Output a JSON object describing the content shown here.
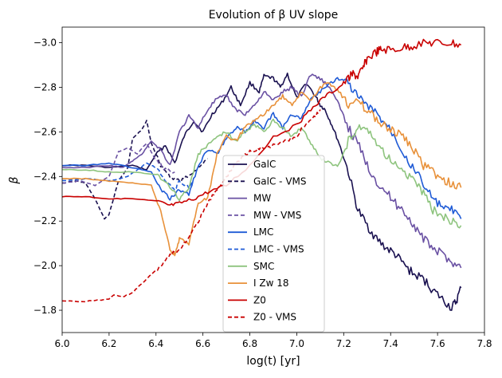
{
  "chart_data": {
    "type": "line",
    "title": "Evolution of β UV slope",
    "xlabel": "log(t) [yr]",
    "ylabel": "β",
    "xlim": [
      6.0,
      7.8
    ],
    "ylim": [
      -1.7,
      -3.07
    ],
    "y_inverted": true,
    "x_ticks": [
      "6.0",
      "6.2",
      "6.4",
      "6.6",
      "6.8",
      "7.0",
      "7.2",
      "7.4",
      "7.6",
      "7.8"
    ],
    "x_tick_values": [
      6.0,
      6.2,
      6.4,
      6.6,
      6.8,
      7.0,
      7.2,
      7.4,
      7.6,
      7.8
    ],
    "y_ticks": [
      "−3.0",
      "−2.8",
      "−2.6",
      "−2.4",
      "−2.2",
      "−2.0",
      "−1.8"
    ],
    "y_tick_values": [
      -3.0,
      -2.8,
      -2.6,
      -2.4,
      -2.2,
      -2.0,
      -1.8
    ],
    "legend_position": "lower-center",
    "series": [
      {
        "name": "GalC",
        "color": "#1a1150",
        "dash": "solid",
        "points": [
          [
            6.0,
            -2.45
          ],
          [
            6.1,
            -2.45
          ],
          [
            6.2,
            -2.44
          ],
          [
            6.3,
            -2.45
          ],
          [
            6.36,
            -2.43
          ],
          [
            6.4,
            -2.5
          ],
          [
            6.44,
            -2.54
          ],
          [
            6.48,
            -2.46
          ],
          [
            6.52,
            -2.58
          ],
          [
            6.56,
            -2.65
          ],
          [
            6.6,
            -2.6
          ],
          [
            6.64,
            -2.68
          ],
          [
            6.68,
            -2.73
          ],
          [
            6.72,
            -2.8
          ],
          [
            6.76,
            -2.72
          ],
          [
            6.8,
            -2.82
          ],
          [
            6.84,
            -2.78
          ],
          [
            6.86,
            -2.85
          ],
          [
            6.9,
            -2.84
          ],
          [
            6.93,
            -2.8
          ],
          [
            6.96,
            -2.86
          ],
          [
            7.0,
            -2.75
          ],
          [
            7.04,
            -2.82
          ],
          [
            7.08,
            -2.76
          ],
          [
            7.1,
            -2.72
          ],
          [
            7.12,
            -2.7
          ],
          [
            7.15,
            -2.63
          ],
          [
            7.18,
            -2.55
          ],
          [
            7.22,
            -2.42
          ],
          [
            7.26,
            -2.25
          ],
          [
            7.3,
            -2.18
          ],
          [
            7.34,
            -2.12
          ],
          [
            7.38,
            -2.08
          ],
          [
            7.42,
            -2.05
          ],
          [
            7.46,
            -2.0
          ],
          [
            7.5,
            -1.96
          ],
          [
            7.54,
            -1.94
          ],
          [
            7.58,
            -1.89
          ],
          [
            7.62,
            -1.85
          ],
          [
            7.66,
            -1.81
          ],
          [
            7.68,
            -1.84
          ],
          [
            7.7,
            -1.9
          ]
        ]
      },
      {
        "name": "GalC - VMS",
        "color": "#1a1150",
        "dash": "dashed",
        "points": [
          [
            6.0,
            -2.37
          ],
          [
            6.06,
            -2.38
          ],
          [
            6.1,
            -2.37
          ],
          [
            6.14,
            -2.3
          ],
          [
            6.18,
            -2.21
          ],
          [
            6.2,
            -2.23
          ],
          [
            6.24,
            -2.38
          ],
          [
            6.28,
            -2.44
          ],
          [
            6.3,
            -2.57
          ],
          [
            6.34,
            -2.61
          ],
          [
            6.36,
            -2.65
          ],
          [
            6.38,
            -2.55
          ],
          [
            6.42,
            -2.45
          ],
          [
            6.46,
            -2.4
          ],
          [
            6.5,
            -2.38
          ],
          [
            6.54,
            -2.4
          ],
          [
            6.58,
            -2.44
          ],
          [
            6.62,
            -2.48
          ]
        ]
      },
      {
        "name": "MW",
        "color": "#6a51a3",
        "dash": "solid",
        "points": [
          [
            6.0,
            -2.44
          ],
          [
            6.1,
            -2.44
          ],
          [
            6.2,
            -2.45
          ],
          [
            6.26,
            -2.44
          ],
          [
            6.3,
            -2.47
          ],
          [
            6.34,
            -2.5
          ],
          [
            6.38,
            -2.56
          ],
          [
            6.42,
            -2.52
          ],
          [
            6.46,
            -2.45
          ],
          [
            6.5,
            -2.6
          ],
          [
            6.54,
            -2.67
          ],
          [
            6.58,
            -2.62
          ],
          [
            6.62,
            -2.7
          ],
          [
            6.66,
            -2.75
          ],
          [
            6.7,
            -2.76
          ],
          [
            6.74,
            -2.7
          ],
          [
            6.78,
            -2.68
          ],
          [
            6.82,
            -2.72
          ],
          [
            6.86,
            -2.78
          ],
          [
            6.9,
            -2.74
          ],
          [
            6.94,
            -2.78
          ],
          [
            6.98,
            -2.8
          ],
          [
            7.02,
            -2.76
          ],
          [
            7.06,
            -2.86
          ],
          [
            7.1,
            -2.84
          ],
          [
            7.14,
            -2.8
          ],
          [
            7.18,
            -2.72
          ],
          [
            7.22,
            -2.62
          ],
          [
            7.26,
            -2.55
          ],
          [
            7.3,
            -2.45
          ],
          [
            7.34,
            -2.38
          ],
          [
            7.38,
            -2.33
          ],
          [
            7.42,
            -2.28
          ],
          [
            7.46,
            -2.24
          ],
          [
            7.5,
            -2.18
          ],
          [
            7.54,
            -2.12
          ],
          [
            7.58,
            -2.08
          ],
          [
            7.62,
            -2.05
          ],
          [
            7.66,
            -2.02
          ],
          [
            7.7,
            -1.99
          ]
        ]
      },
      {
        "name": "MW - VMS",
        "color": "#6a51a3",
        "dash": "dashed",
        "points": [
          [
            6.0,
            -2.37
          ],
          [
            6.08,
            -2.38
          ],
          [
            6.14,
            -2.36
          ],
          [
            6.2,
            -2.4
          ],
          [
            6.24,
            -2.51
          ],
          [
            6.28,
            -2.53
          ],
          [
            6.32,
            -2.5
          ],
          [
            6.36,
            -2.55
          ],
          [
            6.4,
            -2.47
          ],
          [
            6.44,
            -2.43
          ],
          [
            6.48,
            -2.42
          ]
        ]
      },
      {
        "name": "LMC",
        "color": "#1f5bd6",
        "dash": "solid",
        "points": [
          [
            6.0,
            -2.45
          ],
          [
            6.1,
            -2.45
          ],
          [
            6.2,
            -2.46
          ],
          [
            6.3,
            -2.44
          ],
          [
            6.38,
            -2.42
          ],
          [
            6.42,
            -2.34
          ],
          [
            6.46,
            -2.3
          ],
          [
            6.5,
            -2.34
          ],
          [
            6.54,
            -2.32
          ],
          [
            6.58,
            -2.45
          ],
          [
            6.62,
            -2.52
          ],
          [
            6.66,
            -2.5
          ],
          [
            6.7,
            -2.57
          ],
          [
            6.74,
            -2.62
          ],
          [
            6.78,
            -2.6
          ],
          [
            6.82,
            -2.65
          ],
          [
            6.86,
            -2.62
          ],
          [
            6.9,
            -2.68
          ],
          [
            6.94,
            -2.62
          ],
          [
            6.98,
            -2.68
          ],
          [
            7.02,
            -2.66
          ],
          [
            7.06,
            -2.75
          ],
          [
            7.1,
            -2.78
          ],
          [
            7.14,
            -2.82
          ],
          [
            7.18,
            -2.84
          ],
          [
            7.22,
            -2.82
          ],
          [
            7.26,
            -2.76
          ],
          [
            7.3,
            -2.72
          ],
          [
            7.34,
            -2.68
          ],
          [
            7.38,
            -2.64
          ],
          [
            7.42,
            -2.58
          ],
          [
            7.46,
            -2.5
          ],
          [
            7.5,
            -2.43
          ],
          [
            7.54,
            -2.37
          ],
          [
            7.58,
            -2.3
          ],
          [
            7.62,
            -2.26
          ],
          [
            7.66,
            -2.25
          ],
          [
            7.7,
            -2.21
          ]
        ]
      },
      {
        "name": "LMC - VMS",
        "color": "#1f5bd6",
        "dash": "dashed",
        "points": [
          [
            6.0,
            -2.38
          ],
          [
            6.1,
            -2.39
          ],
          [
            6.2,
            -2.38
          ],
          [
            6.28,
            -2.4
          ],
          [
            6.32,
            -2.43
          ],
          [
            6.36,
            -2.46
          ],
          [
            6.4,
            -2.44
          ],
          [
            6.44,
            -2.38
          ],
          [
            6.48,
            -2.34
          ],
          [
            6.5,
            -2.38
          ],
          [
            6.54,
            -2.35
          ],
          [
            6.56,
            -2.38
          ]
        ]
      },
      {
        "name": "SMC",
        "color": "#8ec47e",
        "dash": "solid",
        "points": [
          [
            6.0,
            -2.43
          ],
          [
            6.1,
            -2.43
          ],
          [
            6.2,
            -2.42
          ],
          [
            6.3,
            -2.42
          ],
          [
            6.4,
            -2.41
          ],
          [
            6.44,
            -2.38
          ],
          [
            6.5,
            -2.3
          ],
          [
            6.54,
            -2.35
          ],
          [
            6.58,
            -2.5
          ],
          [
            6.62,
            -2.54
          ],
          [
            6.66,
            -2.58
          ],
          [
            6.7,
            -2.6
          ],
          [
            6.74,
            -2.56
          ],
          [
            6.78,
            -2.6
          ],
          [
            6.82,
            -2.63
          ],
          [
            6.86,
            -2.6
          ],
          [
            6.9,
            -2.65
          ],
          [
            6.94,
            -2.62
          ],
          [
            6.98,
            -2.58
          ],
          [
            7.02,
            -2.62
          ],
          [
            7.06,
            -2.55
          ],
          [
            7.1,
            -2.48
          ],
          [
            7.14,
            -2.46
          ],
          [
            7.18,
            -2.45
          ],
          [
            7.22,
            -2.56
          ],
          [
            7.26,
            -2.62
          ],
          [
            7.3,
            -2.6
          ],
          [
            7.34,
            -2.55
          ],
          [
            7.38,
            -2.5
          ],
          [
            7.42,
            -2.45
          ],
          [
            7.46,
            -2.42
          ],
          [
            7.5,
            -2.38
          ],
          [
            7.54,
            -2.32
          ],
          [
            7.58,
            -2.25
          ],
          [
            7.62,
            -2.22
          ],
          [
            7.66,
            -2.2
          ],
          [
            7.7,
            -2.18
          ]
        ]
      },
      {
        "name": "I Zw 18",
        "color": "#e8913a",
        "dash": "solid",
        "points": [
          [
            6.0,
            -2.39
          ],
          [
            6.1,
            -2.39
          ],
          [
            6.2,
            -2.38
          ],
          [
            6.3,
            -2.37
          ],
          [
            6.38,
            -2.36
          ],
          [
            6.42,
            -2.24
          ],
          [
            6.46,
            -2.07
          ],
          [
            6.48,
            -2.05
          ],
          [
            6.5,
            -2.12
          ],
          [
            6.54,
            -2.1
          ],
          [
            6.58,
            -2.28
          ],
          [
            6.62,
            -2.3
          ],
          [
            6.66,
            -2.5
          ],
          [
            6.7,
            -2.58
          ],
          [
            6.74,
            -2.56
          ],
          [
            6.78,
            -2.62
          ],
          [
            6.82,
            -2.65
          ],
          [
            6.86,
            -2.68
          ],
          [
            6.9,
            -2.72
          ],
          [
            6.94,
            -2.76
          ],
          [
            6.98,
            -2.72
          ],
          [
            7.02,
            -2.78
          ],
          [
            7.06,
            -2.74
          ],
          [
            7.1,
            -2.8
          ],
          [
            7.14,
            -2.82
          ],
          [
            7.18,
            -2.78
          ],
          [
            7.22,
            -2.72
          ],
          [
            7.26,
            -2.74
          ],
          [
            7.3,
            -2.7
          ],
          [
            7.34,
            -2.66
          ],
          [
            7.38,
            -2.62
          ],
          [
            7.42,
            -2.6
          ],
          [
            7.46,
            -2.57
          ],
          [
            7.5,
            -2.52
          ],
          [
            7.54,
            -2.45
          ],
          [
            7.58,
            -2.42
          ],
          [
            7.62,
            -2.39
          ],
          [
            7.66,
            -2.37
          ],
          [
            7.7,
            -2.35
          ]
        ]
      },
      {
        "name": "Z0",
        "color": "#c90000",
        "dash": "solid",
        "points": [
          [
            6.0,
            -2.31
          ],
          [
            6.1,
            -2.31
          ],
          [
            6.2,
            -2.3
          ],
          [
            6.3,
            -2.3
          ],
          [
            6.4,
            -2.29
          ],
          [
            6.46,
            -2.27
          ],
          [
            6.5,
            -2.28
          ],
          [
            6.56,
            -2.3
          ],
          [
            6.62,
            -2.33
          ],
          [
            6.7,
            -2.36
          ],
          [
            6.8,
            -2.45
          ],
          [
            6.9,
            -2.58
          ],
          [
            7.0,
            -2.63
          ],
          [
            7.06,
            -2.7
          ],
          [
            7.12,
            -2.76
          ],
          [
            7.18,
            -2.8
          ],
          [
            7.22,
            -2.84
          ],
          [
            7.24,
            -2.86
          ],
          [
            7.26,
            -2.85
          ],
          [
            7.28,
            -2.88
          ],
          [
            7.3,
            -2.93
          ],
          [
            7.34,
            -2.96
          ],
          [
            7.36,
            -2.97
          ],
          [
            7.4,
            -2.97
          ],
          [
            7.46,
            -2.98
          ],
          [
            7.5,
            -2.99
          ],
          [
            7.56,
            -3.0
          ],
          [
            7.6,
            -3.0
          ],
          [
            7.66,
            -3.0
          ],
          [
            7.7,
            -2.99
          ]
        ]
      },
      {
        "name": "Z0 - VMS",
        "color": "#c90000",
        "dash": "dashed",
        "points": [
          [
            6.0,
            -1.84
          ],
          [
            6.1,
            -1.84
          ],
          [
            6.2,
            -1.85
          ],
          [
            6.22,
            -1.87
          ],
          [
            6.26,
            -1.86
          ],
          [
            6.3,
            -1.88
          ],
          [
            6.34,
            -1.92
          ],
          [
            6.38,
            -1.96
          ],
          [
            6.42,
            -2.0
          ],
          [
            6.46,
            -2.05
          ],
          [
            6.5,
            -2.07
          ],
          [
            6.54,
            -2.13
          ],
          [
            6.58,
            -2.2
          ],
          [
            6.62,
            -2.28
          ],
          [
            6.66,
            -2.34
          ],
          [
            6.7,
            -2.4
          ],
          [
            6.74,
            -2.46
          ],
          [
            6.78,
            -2.5
          ],
          [
            6.82,
            -2.52
          ],
          [
            6.86,
            -2.53
          ],
          [
            6.9,
            -2.54
          ],
          [
            6.96,
            -2.56
          ],
          [
            7.0,
            -2.58
          ],
          [
            7.04,
            -2.64
          ],
          [
            7.08,
            -2.67
          ],
          [
            7.1,
            -2.7
          ]
        ]
      }
    ]
  }
}
